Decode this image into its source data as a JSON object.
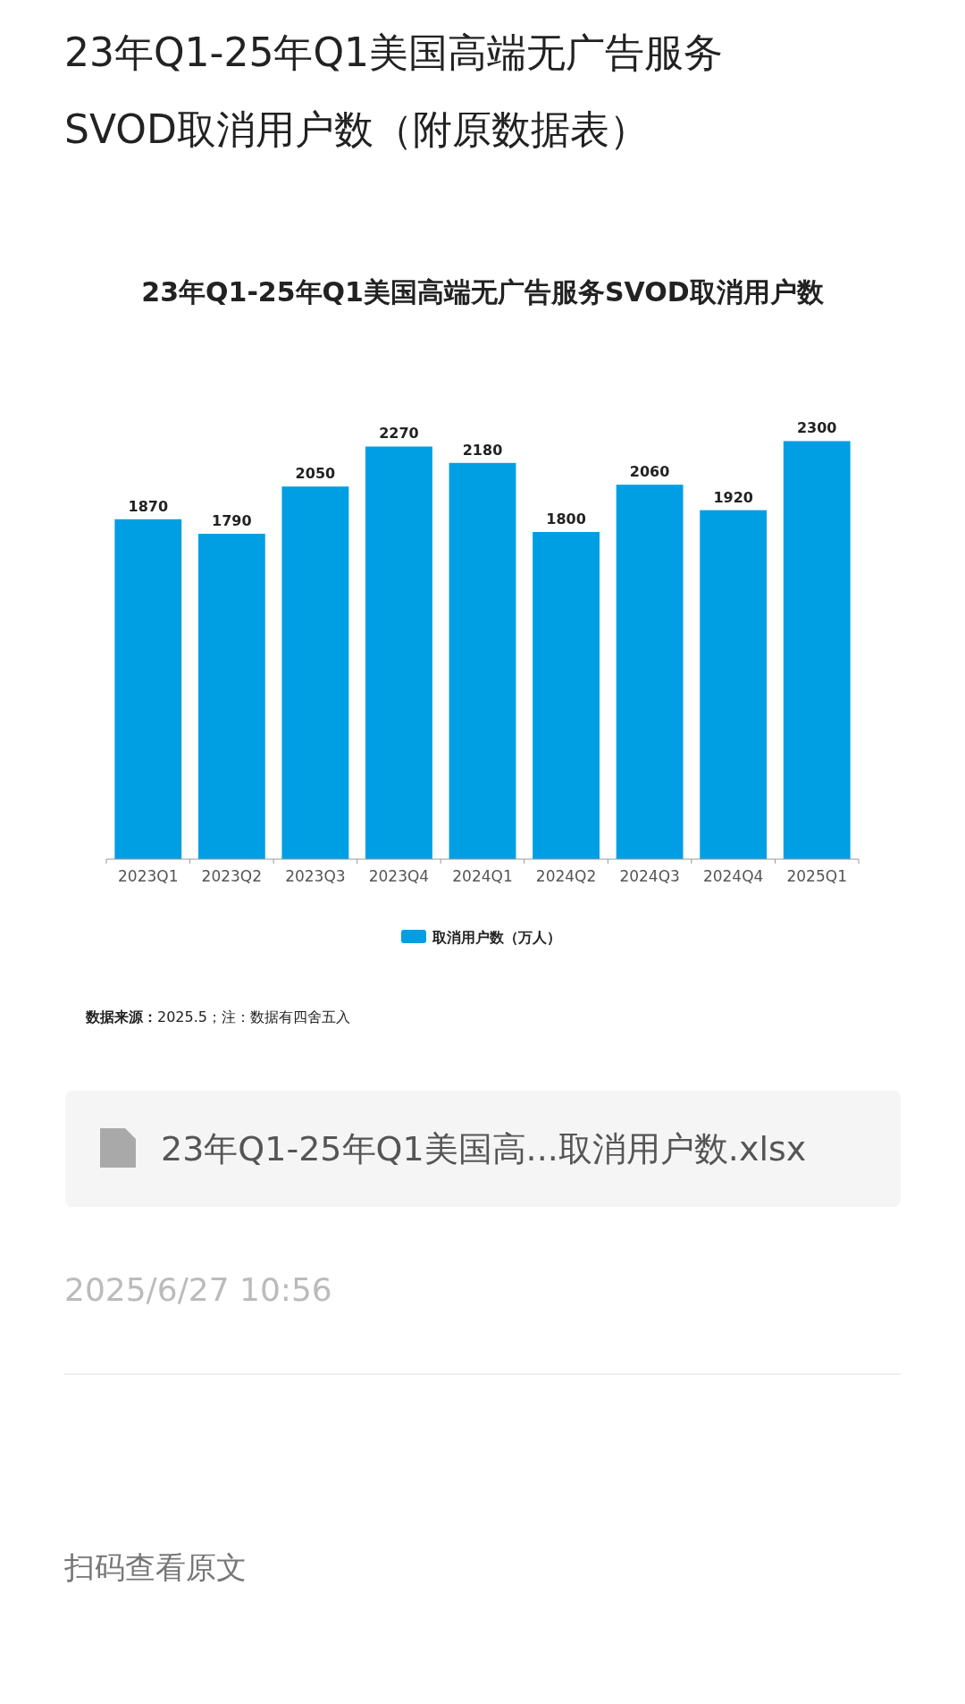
{
  "chart_data": {
    "type": "bar",
    "title": "23年Q1-25年Q1美国高端无广告服务SVOD取消用户数",
    "categories": [
      "2023Q1",
      "2023Q2",
      "2023Q3",
      "2023Q4",
      "2024Q1",
      "2024Q2",
      "2024Q3",
      "2024Q4",
      "2025Q1"
    ],
    "series": [
      {
        "name": "取消用户数（万人）",
        "color": "#009fe3",
        "values": [
          1870,
          1790,
          2050,
          2270,
          2180,
          1800,
          2060,
          1920,
          2300
        ]
      }
    ],
    "data_labels": true,
    "legend": "bottom",
    "subtitle": "23年Q1-25年Q1美国高端无广告服务SVOD取消用户数（附原数据表）",
    "annotations": [
      "**数据来源：**2025.5；注：数据有四舍五入",
      "23年Q1-25年Q1美国高...取消用户数.xlsx",
      "2025/6/27 10:56",
      "扫码查看原文"
    ]
  }
}
